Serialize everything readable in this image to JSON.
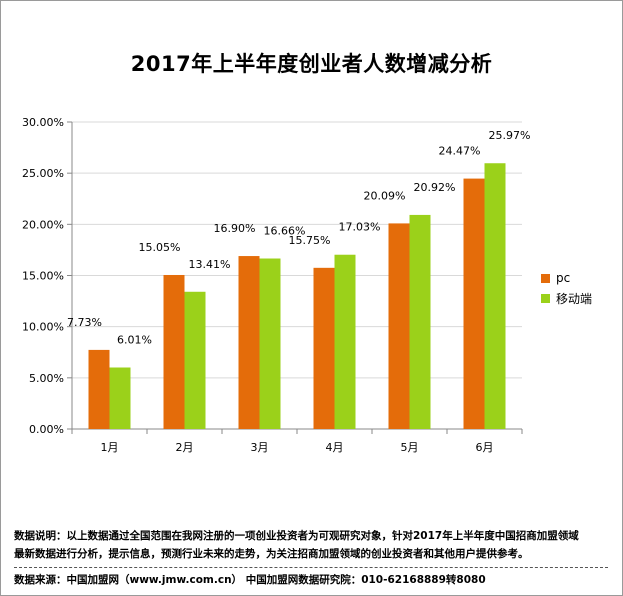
{
  "chart_data": {
    "type": "bar",
    "title": "2017年上半年度创业者人数增减分析",
    "categories": [
      "1月",
      "2月",
      "3月",
      "4月",
      "5月",
      "6月"
    ],
    "series": [
      {
        "name": "pc",
        "color": "#e46c0a",
        "values": [
          7.73,
          15.05,
          16.9,
          15.75,
          20.09,
          24.47
        ]
      },
      {
        "name": "移动端",
        "color": "#9bd11a",
        "values": [
          6.01,
          13.41,
          16.66,
          17.03,
          20.92,
          25.97
        ]
      }
    ],
    "ylim": [
      0,
      30
    ],
    "yticks": [
      "0.00%",
      "5.00%",
      "10.00%",
      "15.00%",
      "20.00%",
      "25.00%",
      "30.00%"
    ],
    "value_suffix": "%",
    "grid": true,
    "legend_position": "right"
  },
  "footer": {
    "note_line1": "数据说明：以上数据通过全国范围在我网注册的一项创业投资者为可观研究对象，针对2017年上半年度中国招商加盟领域",
    "note_line2": "最新数据进行分析，提示信息，预测行业未来的走势，为关注招商加盟领域的创业投资者和其他用户提供参考。",
    "source": "数据来源：中国加盟网（www.jmw.com.cn）   中国加盟网数据研究院：010-62168889转8080"
  }
}
